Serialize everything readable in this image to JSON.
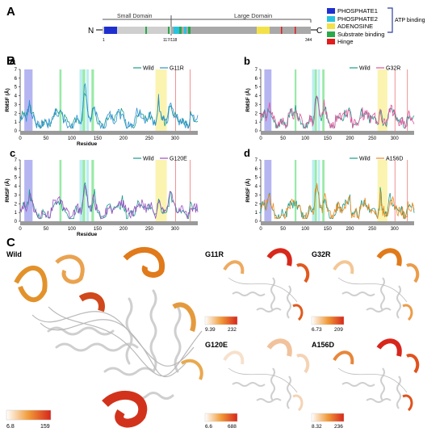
{
  "panel_A": {
    "letter": "A",
    "n_label": "N",
    "c_label": "C",
    "small_domain": "Small Domain",
    "large_domain": "Large Domain",
    "res_start": "1",
    "res_mid": "117/118",
    "res_end": "344",
    "legend": [
      {
        "label": "PHOSPHATE1",
        "color": "#1f2fcf"
      },
      {
        "label": "PHOSPHATE2",
        "color": "#27c2e0"
      },
      {
        "label": "ADENOSINE",
        "color": "#f3e14a"
      },
      {
        "label": "Substrate binding",
        "color": "#2aa84a"
      },
      {
        "label": "Hinge",
        "color": "#e01c1c"
      }
    ],
    "atp_binding": "ATP binding"
  },
  "panel_B": {
    "letter": "B",
    "charts": [
      {
        "letter": "a",
        "wild": "Wild",
        "mutant": "G11R",
        "mutant_color": "#2f8fd6"
      },
      {
        "letter": "b",
        "wild": "Wild",
        "mutant": "G32R",
        "mutant_color": "#e0539a"
      },
      {
        "letter": "c",
        "wild": "Wild",
        "mutant": "G120E",
        "mutant_color": "#9b4fc2"
      },
      {
        "letter": "d",
        "wild": "Wild",
        "mutant": "A156D",
        "mutant_color": "#f08a1c"
      }
    ],
    "ylabel": "RMSF (Å)",
    "xlabel": "Residue",
    "wild_color": "#1a9c8a",
    "yticks": [
      "0",
      "1",
      "2",
      "3",
      "4",
      "5",
      "6",
      "7"
    ],
    "xticks": [
      "0",
      "50",
      "100",
      "150",
      "200",
      "250",
      "300"
    ]
  },
  "chart_data": [
    {
      "type": "line",
      "ylabel": "RMSF (Å)",
      "xlabel": "Residue",
      "ylim": [
        0,
        7
      ],
      "xlim": [
        0,
        344
      ],
      "series": [
        {
          "name": "Wild"
        },
        {
          "name": "G11R"
        }
      ],
      "highlights": {
        "phosphate1": [
          8,
          24
        ],
        "substrate": [
          [
            76,
            80
          ],
          [
            123,
            130
          ],
          [
            140,
            145
          ]
        ],
        "phosphate2": [
          118,
          128
        ],
        "adenosine": [
          262,
          285
        ],
        "hinge": [
          296,
          330
        ]
      }
    },
    {
      "type": "line",
      "ylabel": "RMSF (Å)",
      "xlabel": "Residue",
      "ylim": [
        0,
        7
      ],
      "xlim": [
        0,
        344
      ],
      "series": [
        {
          "name": "Wild"
        },
        {
          "name": "G32R"
        }
      ]
    },
    {
      "type": "line",
      "ylabel": "RMSF (Å)",
      "xlabel": "Residue",
      "ylim": [
        0,
        7
      ],
      "xlim": [
        0,
        344
      ],
      "series": [
        {
          "name": "Wild"
        },
        {
          "name": "G120E"
        }
      ]
    },
    {
      "type": "line",
      "ylabel": "RMSF (Å)",
      "xlabel": "Residue",
      "ylim": [
        0,
        7
      ],
      "xlim": [
        0,
        344
      ],
      "series": [
        {
          "name": "Wild"
        },
        {
          "name": "A156D"
        }
      ]
    }
  ],
  "panel_C": {
    "letter": "C",
    "structures": [
      {
        "name": "Wild",
        "min": "6.8",
        "max": "159"
      },
      {
        "name": "G11R",
        "min": "9.39",
        "max": "232"
      },
      {
        "name": "G32R",
        "min": "6.73",
        "max": "209"
      },
      {
        "name": "G120E",
        "min": "6.6",
        "max": "688"
      },
      {
        "name": "A156D",
        "min": "8.32",
        "max": "236"
      }
    ]
  }
}
